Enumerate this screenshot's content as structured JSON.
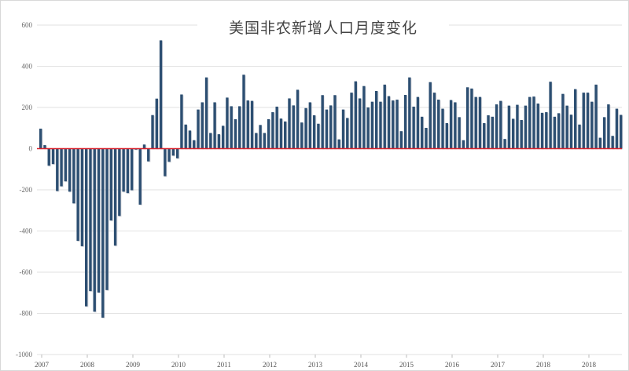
{
  "chart_data": {
    "type": "bar",
    "title": "美国非农新增人口月度变化",
    "xlabel": "",
    "ylabel": "",
    "ylim": [
      -1000,
      600
    ],
    "yticks": [
      600,
      400,
      200,
      0,
      -200,
      -400,
      -600,
      -800,
      -1000
    ],
    "xticklabels": [
      "2007",
      "2008",
      "2009",
      "2010",
      "2011",
      "2012",
      "2013",
      "2014",
      "2015",
      "2016",
      "2017",
      "2018",
      "2018"
    ],
    "grid": true,
    "bar_color": "#2d4f72",
    "zero_line_color": "#d9232e",
    "values": [
      97,
      17,
      -83,
      -75,
      -206,
      -183,
      -159,
      -209,
      -266,
      -448,
      -474,
      -766,
      -692,
      -792,
      -699,
      -821,
      -687,
      -349,
      -471,
      -327,
      -209,
      -216,
      -202,
      -5,
      -272,
      20,
      -62,
      163,
      243,
      526,
      -134,
      -64,
      -34,
      -47,
      263,
      117,
      88,
      41,
      190,
      225,
      346,
      76,
      225,
      70,
      111,
      248,
      206,
      143,
      206,
      359,
      234,
      232,
      76,
      115,
      76,
      143,
      177,
      204,
      146,
      132,
      244,
      210,
      286,
      127,
      197,
      225,
      162,
      121,
      260,
      190,
      210,
      260,
      45,
      190,
      149,
      272,
      327,
      244,
      304,
      200,
      228,
      280,
      228,
      311,
      255,
      234,
      238,
      85,
      261,
      346,
      204,
      251,
      155,
      101,
      323,
      272,
      238,
      194,
      124,
      236,
      225,
      153,
      41,
      298,
      292,
      251,
      251,
      124,
      162,
      155,
      215,
      232,
      47,
      209,
      145,
      213,
      139,
      209,
      251,
      253,
      219,
      174,
      177,
      325,
      155,
      172,
      266,
      209,
      165,
      289,
      117,
      272,
      272,
      228,
      311,
      53,
      153,
      215,
      62,
      194,
      164
    ]
  }
}
